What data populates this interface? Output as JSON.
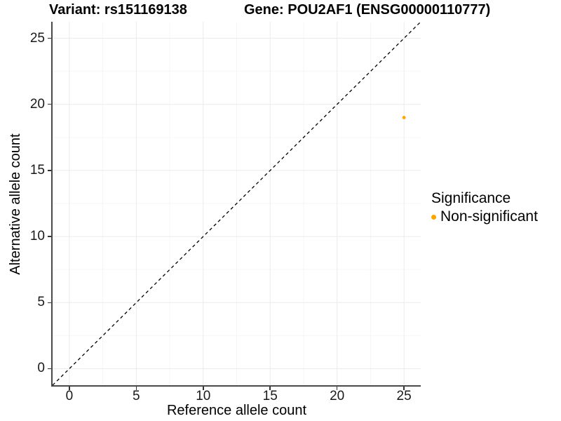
{
  "figure": {
    "title_variant": "Variant: rs151169138",
    "title_gene": "Gene: POU2AF1 (ENSG00000110777)"
  },
  "axes": {
    "x_title": "Reference allele count",
    "y_title": "Alternative allele count"
  },
  "legend": {
    "title": "Significance",
    "items": [
      {
        "label": "Non-significant",
        "color": "#FFA500"
      }
    ]
  },
  "chart_data": {
    "type": "scatter",
    "title": "Variant: rs151169138 | Gene: POU2AF1 (ENSG00000110777)",
    "xlabel": "Reference allele count",
    "ylabel": "Alternative allele count",
    "xlim": [
      -1.25,
      26.25
    ],
    "ylim": [
      -1.25,
      26.25
    ],
    "x_major_ticks": [
      0,
      5,
      10,
      15,
      20,
      25
    ],
    "y_major_ticks": [
      0,
      5,
      10,
      15,
      20,
      25
    ],
    "x_minor_ticks": [
      2.5,
      7.5,
      12.5,
      17.5,
      22.5
    ],
    "y_minor_ticks": [
      2.5,
      7.5,
      12.5,
      17.5,
      22.5
    ],
    "grid": true,
    "legend_position": "right",
    "series": [
      {
        "name": "Non-significant",
        "color": "#FFA500",
        "marker_radius": 2.4,
        "points": [
          {
            "x": 25,
            "y": 19
          }
        ]
      }
    ],
    "identity_line": {
      "style": "dashed",
      "color": "#000000",
      "from": [
        -1.25,
        -1.25
      ],
      "to": [
        26.25,
        26.25
      ]
    }
  },
  "style": {
    "grid_major_color": "#ebebeb",
    "grid_minor_color": "#f6f6f6",
    "axis_line_color": "#4a4a4a",
    "tick_color": "#333333",
    "background": "#ffffff"
  }
}
